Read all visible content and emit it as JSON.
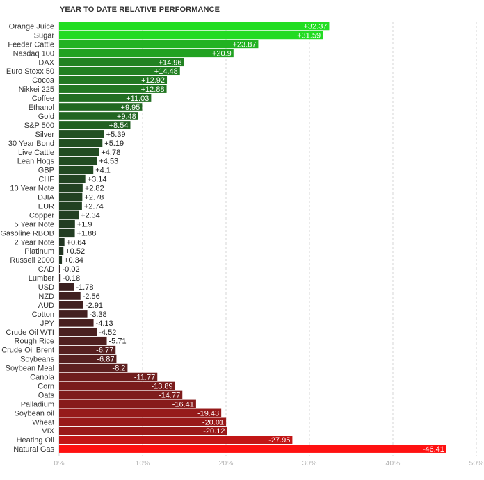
{
  "chart_data": {
    "type": "bar",
    "orientation": "horizontal",
    "title": "YEAR TO DATE RELATIVE PERFORMANCE",
    "categories": [
      "Orange Juice",
      "Sugar",
      "Feeder Cattle",
      "Nasdaq 100",
      "DAX",
      "Euro Stoxx 50",
      "Cocoa",
      "Nikkei 225",
      "Coffee",
      "Ethanol",
      "Gold",
      "S&P 500",
      "Silver",
      "30 Year Bond",
      "Live Cattle",
      "Lean Hogs",
      "GBP",
      "CHF",
      "10 Year Note",
      "DJIA",
      "EUR",
      "Copper",
      "5 Year Note",
      "Gasoline RBOB",
      "2 Year Note",
      "Platinum",
      "Russell 2000",
      "CAD",
      "Lumber",
      "USD",
      "NZD",
      "AUD",
      "Cotton",
      "JPY",
      "Crude Oil WTI",
      "Rough Rice",
      "Crude Oil Brent",
      "Soybeans",
      "Soybean Meal",
      "Canola",
      "Corn",
      "Oats",
      "Palladium",
      "Soybean oil",
      "Wheat",
      "VIX",
      "Heating Oil",
      "Natural Gas"
    ],
    "values": [
      32.37,
      31.59,
      23.87,
      20.9,
      14.96,
      14.48,
      12.92,
      12.88,
      11.03,
      9.95,
      9.48,
      8.54,
      5.39,
      5.19,
      4.78,
      4.53,
      4.1,
      3.14,
      2.82,
      2.78,
      2.74,
      2.34,
      1.9,
      1.88,
      0.64,
      0.52,
      0.34,
      -0.02,
      -0.18,
      -1.78,
      -2.56,
      -2.91,
      -3.38,
      -4.13,
      -4.52,
      -5.71,
      -6.77,
      -6.87,
      -8.2,
      -11.77,
      -13.89,
      -14.77,
      -16.41,
      -19.43,
      -20.01,
      -20.12,
      -27.95,
      -46.41
    ],
    "value_labels": [
      "+32.37",
      "+31.59",
      "+23.87",
      "+20.9",
      "+14.96",
      "+14.48",
      "+12.92",
      "+12.88",
      "+11.03",
      "+9.95",
      "+9.48",
      "+8.54",
      "+5.39",
      "+5.19",
      "+4.78",
      "+4.53",
      "+4.1",
      "+3.14",
      "+2.82",
      "+2.78",
      "+2.74",
      "+2.34",
      "+1.9",
      "+1.88",
      "+0.64",
      "+0.52",
      "+0.34",
      "-0.02",
      "-0.18",
      "-1.78",
      "-2.56",
      "-2.91",
      "-3.38",
      "-4.13",
      "-4.52",
      "-5.71",
      "-6.77",
      "-6.87",
      "-8.2",
      "-11.77",
      "-13.89",
      "-14.77",
      "-16.41",
      "-19.43",
      "-20.01",
      "-20.12",
      "-27.95",
      "-46.41"
    ],
    "x_ticks": [
      "0%",
      "10%",
      "20%",
      "30%",
      "40%",
      "50%"
    ],
    "xlim": [
      0,
      50
    ],
    "bar_length": "absolute value",
    "grid": true,
    "legend": "none",
    "colors": {
      "positive_strong": "#22dd22",
      "positive_weak": "#223322",
      "negative_weak": "#332222",
      "negative_strong": "#ff1111",
      "grid": "#d6d6d6",
      "tick_text": "#b5b5b5"
    }
  }
}
